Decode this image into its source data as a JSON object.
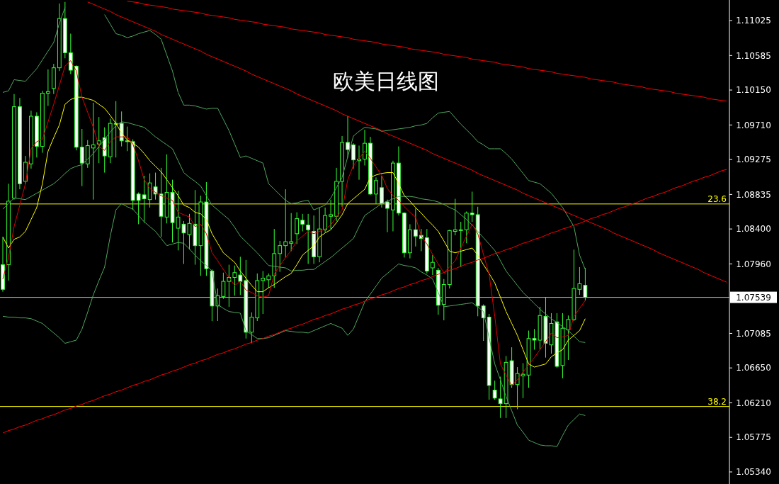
{
  "chart_data": {
    "type": "candlestick",
    "title": "欧美日线图",
    "color": "#33ff33",
    "grid": false,
    "tick_labels": "y",
    "categories": [
      null,
      null,
      null,
      null,
      null,
      null,
      null,
      null,
      null,
      null,
      null,
      null,
      null,
      null,
      null,
      null,
      null,
      null,
      null,
      null,
      null,
      null,
      null,
      null,
      null,
      null,
      null,
      null,
      null,
      null,
      null,
      null,
      null,
      null,
      null,
      null,
      null,
      null,
      null,
      null,
      null,
      null,
      null,
      null,
      null,
      null,
      null,
      null,
      null,
      null,
      null,
      null,
      null,
      null,
      null,
      null,
      null,
      null,
      null,
      null,
      null,
      null,
      null,
      null,
      null,
      null,
      null,
      null,
      null,
      null,
      null,
      null,
      null,
      null,
      null,
      null,
      null,
      null,
      null,
      null,
      null,
      null,
      null,
      null,
      null,
      null,
      null,
      null,
      null,
      null,
      null,
      null,
      null,
      null,
      null,
      null,
      null,
      null,
      null,
      null,
      null,
      null,
      null,
      null,
      null,
      null,
      null,
      null,
      null,
      null,
      null,
      null,
      null,
      null,
      null,
      null,
      null,
      null,
      null,
      null,
      null,
      null,
      null,
      null,
      null,
      null,
      null,
      null,
      null
    ],
    "ylim": [
      1.05188,
      1.11284
    ],
    "yticks": [
      1.11025,
      1.10585,
      {
        "value": 1.1015,
        "label": "1.10150"
      },
      {
        "value": 1.0971,
        "label": "1.09710"
      },
      1.09275,
      1.08835,
      {
        "value": 1.084,
        "label": "1.08400"
      },
      {
        "value": 1.0796,
        "label": "1.07960"
      },
      1.07085,
      {
        "value": 1.0665,
        "label": "1.06650"
      },
      {
        "value": 1.0621,
        "label": "1.06210"
      },
      1.05775,
      {
        "value": 1.0534,
        "label": "1.05340"
      }
    ],
    "annotations": [
      {
        "text": "23.6",
        "y": 1.08715
      },
      {
        "text": "38.2",
        "y": 1.06164
      }
    ],
    "ohlc": [
      [
        1.0795,
        1.083,
        1.0761,
        1.0764
      ],
      [
        1.0795,
        1.0897,
        1.0775,
        1.0875
      ],
      [
        1.0879,
        1.101,
        1.0877,
        1.0994
      ],
      [
        1.0994,
        1.1005,
        1.089,
        1.0897
      ],
      [
        1.09,
        1.0932,
        1.0897,
        1.0924
      ],
      [
        1.0922,
        1.0989,
        1.0916,
        1.0982
      ],
      [
        1.0982,
        1.0987,
        1.093,
        1.0944
      ],
      [
        1.0944,
        1.1014,
        1.0936,
        1.1011
      ],
      [
        1.1011,
        1.1041,
        1.0995,
        1.1013
      ],
      [
        1.1017,
        1.1048,
        1.101,
        1.1043
      ],
      [
        1.1043,
        1.1124,
        1.1039,
        1.1105
      ],
      [
        1.1105,
        1.1126,
        1.1055,
        1.1062
      ],
      [
        1.1062,
        1.1086,
        1.1035,
        1.104
      ],
      [
        1.1045,
        1.1046,
        1.0939,
        1.0943
      ],
      [
        1.0943,
        1.0966,
        1.0894,
        1.0923
      ],
      [
        1.0922,
        1.0952,
        1.0917,
        1.0945
      ],
      [
        1.0942,
        1.0999,
        1.0877,
        1.0946
      ],
      [
        1.0947,
        1.0981,
        1.0923,
        1.0951
      ],
      [
        1.0955,
        1.0968,
        1.0911,
        1.0932
      ],
      [
        1.0931,
        1.0979,
        1.0923,
        1.0973
      ],
      [
        1.0973,
        1.1001,
        1.093,
        1.0972
      ],
      [
        1.0973,
        1.0988,
        1.0944,
        1.0951
      ],
      [
        1.0951,
        1.0969,
        1.0938,
        1.095
      ],
      [
        1.095,
        1.0953,
        1.0864,
        1.0876
      ],
      [
        1.0884,
        1.0886,
        1.0846,
        1.0876
      ],
      [
        1.0883,
        1.0907,
        1.0848,
        1.0878
      ],
      [
        1.0877,
        1.091,
        1.0867,
        1.0898
      ],
      [
        1.0893,
        1.0911,
        1.0877,
        1.0884
      ],
      [
        1.0884,
        1.0917,
        1.083,
        1.0856
      ],
      [
        1.0855,
        1.0934,
        1.0847,
        1.0886
      ],
      [
        1.0886,
        1.0902,
        1.0823,
        1.0848
      ],
      [
        1.0841,
        1.0888,
        1.0813,
        1.0855
      ],
      [
        1.0846,
        1.085,
        1.0796,
        1.0835
      ],
      [
        1.0833,
        1.0859,
        1.0814,
        1.0847
      ],
      [
        1.0846,
        1.0889,
        1.0795,
        1.0819
      ],
      [
        1.0819,
        1.0882,
        1.0781,
        1.0874
      ],
      [
        1.0874,
        1.0899,
        1.0781,
        1.079
      ],
      [
        1.0787,
        1.0789,
        1.0724,
        1.0743
      ],
      [
        1.0743,
        1.0765,
        1.0724,
        1.0756
      ],
      [
        1.0755,
        1.0785,
        1.0752,
        1.0774
      ],
      [
        1.0774,
        1.0795,
        1.0742,
        1.0779
      ],
      [
        1.0779,
        1.0794,
        1.0756,
        1.0785
      ],
      [
        1.0782,
        1.0805,
        1.0757,
        1.0774
      ],
      [
        1.0775,
        1.0801,
        1.0702,
        1.071
      ],
      [
        1.071,
        1.0735,
        1.0696,
        1.0729
      ],
      [
        1.0728,
        1.0784,
        1.0724,
        1.0775
      ],
      [
        1.0775,
        1.0787,
        1.0733,
        1.0778
      ],
      [
        1.0776,
        1.0784,
        1.0766,
        1.0781
      ],
      [
        1.0781,
        1.084,
        1.0766,
        1.0809
      ],
      [
        1.0809,
        1.0825,
        1.0786,
        1.0819
      ],
      [
        1.0819,
        1.089,
        1.0804,
        1.0824
      ],
      [
        1.0822,
        1.086,
        1.0812,
        1.0824
      ],
      [
        1.0834,
        1.0861,
        1.0821,
        1.0853
      ],
      [
        1.0851,
        1.0859,
        1.0837,
        1.0846
      ],
      [
        1.0845,
        1.0859,
        1.0796,
        1.0839
      ],
      [
        1.0837,
        1.0857,
        1.0796,
        1.0805
      ],
      [
        1.0805,
        1.0867,
        1.0798,
        1.084
      ],
      [
        1.0839,
        1.0867,
        1.0836,
        1.0857
      ],
      [
        1.0856,
        1.0877,
        1.084,
        1.0858
      ],
      [
        1.0856,
        1.0917,
        1.085,
        1.09
      ],
      [
        1.09,
        1.0957,
        1.0868,
        1.0949
      ],
      [
        1.0949,
        1.0982,
        1.093,
        1.094
      ],
      [
        1.0946,
        1.0948,
        1.0916,
        1.0927
      ],
      [
        1.0926,
        1.0945,
        1.0902,
        1.0928
      ],
      [
        1.0928,
        1.0965,
        1.092,
        1.0948
      ],
      [
        1.0948,
        1.0956,
        1.0883,
        1.0884
      ],
      [
        1.0884,
        1.0905,
        1.0872,
        1.0901
      ],
      [
        1.0892,
        1.0907,
        1.0867,
        1.0872
      ],
      [
        1.0874,
        1.0877,
        1.0836,
        1.0866
      ],
      [
        1.0864,
        1.0926,
        1.0837,
        1.0923
      ],
      [
        1.0923,
        1.0944,
        1.0857,
        1.086
      ],
      [
        1.086,
        1.0861,
        1.0804,
        1.081
      ],
      [
        1.081,
        1.0846,
        1.0803,
        1.0839
      ],
      [
        1.0839,
        1.0866,
        1.0818,
        1.0831
      ],
      [
        1.0832,
        1.084,
        1.0812,
        1.0828
      ],
      [
        1.0829,
        1.084,
        1.0784,
        1.0787
      ],
      [
        1.0791,
        1.0807,
        1.0782,
        1.0798
      ],
      [
        1.0788,
        1.0791,
        1.0732,
        1.0744
      ],
      [
        1.0745,
        1.0777,
        1.0725,
        1.077
      ],
      [
        1.077,
        1.0839,
        1.0765,
        1.0838
      ],
      [
        1.0837,
        1.0878,
        1.0832,
        1.0839
      ],
      [
        1.0838,
        1.0849,
        1.0792,
        1.0839
      ],
      [
        1.0839,
        1.0862,
        1.0822,
        1.086
      ],
      [
        1.086,
        1.0887,
        1.0849,
        1.0858
      ],
      [
        1.0858,
        1.0868,
        1.073,
        1.0743
      ],
      [
        1.0743,
        1.0745,
        1.0699,
        1.0728
      ],
      [
        1.0729,
        1.0733,
        1.0625,
        1.0643
      ],
      [
        1.0637,
        1.0649,
        1.0625,
        1.0627
      ],
      [
        1.0626,
        1.0654,
        1.0602,
        1.062
      ],
      [
        1.062,
        1.068,
        1.0602,
        1.0672
      ],
      [
        1.0674,
        1.0691,
        1.064,
        1.0644
      ],
      [
        1.0644,
        1.0666,
        1.0613,
        1.0658
      ],
      [
        1.0655,
        1.0671,
        1.0627,
        1.0657
      ],
      [
        1.0656,
        1.0712,
        1.064,
        1.0702
      ],
      [
        1.0702,
        1.0714,
        1.0688,
        1.07
      ],
      [
        1.07,
        1.0742,
        1.0688,
        1.0731
      ],
      [
        1.073,
        1.0754,
        1.0678,
        1.0696
      ],
      [
        1.0694,
        1.0734,
        1.0683,
        1.0721
      ],
      [
        1.0723,
        1.0734,
        1.0665,
        1.0667
      ],
      [
        1.0668,
        1.0734,
        1.0652,
        1.0715
      ],
      [
        1.0713,
        1.0731,
        1.0675,
        1.0726
      ],
      [
        1.0726,
        1.0814,
        1.0724,
        1.0765
      ],
      [
        1.0764,
        1.0792,
        1.0757,
        1.0771
      ],
      [
        1.0769,
        1.0791,
        1.075,
        1.07539
      ],
      null,
      null,
      null,
      null,
      null,
      null,
      null,
      null,
      null,
      null,
      null,
      null,
      null,
      null,
      null,
      null,
      null,
      null,
      null,
      null,
      null,
      null,
      null,
      null,
      null
    ],
    "series": [
      {
        "type": "line",
        "color": "#50a860",
        "values": [
          1.1012,
          1.1014,
          1.1028,
          1.1027,
          1.1026,
          1.1034,
          1.1042,
          1.1053,
          1.1064,
          1.1075,
          1.1099,
          1.1119,
          null,
          null,
          null,
          null,
          null,
          null,
          1.111,
          1.1098,
          1.1086,
          1.1084,
          1.1081,
          1.1083,
          1.1086,
          1.1088,
          1.109,
          1.1085,
          1.1079,
          1.1059,
          1.1039,
          1.1012,
          1.0996,
          1.0996,
          1.0995,
          1.0993,
          1.0991,
          1.0992,
          1.0992,
          1.0978,
          1.0964,
          1.0947,
          1.093,
          1.0932,
          1.0929,
          1.0926,
          1.0923,
          1.0897,
          1.089,
          1.0883,
          1.0876,
          1.0872,
          1.0873,
          1.0875,
          1.0876,
          1.0864,
          1.0867,
          1.087,
          1.0879,
          1.0892,
          1.0905,
          1.0931,
          1.0957,
          1.0963,
          1.0968,
          1.0967,
          1.0966,
          1.0963,
          1.0964,
          1.0965,
          1.0966,
          1.0967,
          1.0968,
          1.097,
          1.0971,
          1.0973,
          1.098,
          1.0986,
          1.0987,
          1.0988,
          1.098,
          1.0972,
          1.0965,
          1.0958,
          1.095,
          1.0946,
          1.0941,
          1.0941,
          1.0941,
          1.0935,
          1.0928,
          1.0919,
          1.091,
          1.0901,
          1.0899,
          1.0897,
          1.0891,
          1.0885,
          1.0876,
          1.0867,
          1.0855,
          1.0843,
          1.0807,
          1.0789,
          null,
          null,
          null,
          null,
          null,
          null,
          null,
          null,
          null,
          null,
          null,
          null,
          null,
          null,
          null,
          null,
          null,
          null,
          null,
          null,
          null,
          null,
          null,
          null,
          null
        ]
      },
      {
        "type": "line",
        "color": "#50a860",
        "values": [
          1.0865,
          1.0872,
          1.0879,
          1.0878,
          1.0877,
          1.0881,
          1.0885,
          1.0889,
          1.0893,
          1.0897,
          1.0903,
          1.091,
          1.0916,
          1.0919,
          1.0921,
          1.0928,
          1.0935,
          1.0944,
          1.0953,
          1.0962,
          1.097,
          1.0975,
          1.0974,
          1.0972,
          1.097,
          1.0968,
          1.0962,
          1.0956,
          1.0951,
          1.0946,
          1.0941,
          1.0926,
          1.0911,
          1.0905,
          1.09,
          1.0894,
          1.0882,
          1.087,
          1.0864,
          1.0858,
          1.0852,
          1.0842,
          1.0831,
          1.0824,
          1.0817,
          1.081,
          1.0802,
          1.0794,
          1.0793,
          1.0792,
          1.0791,
          1.0787,
          1.0788,
          1.0788,
          1.0789,
          1.0789,
          1.0794,
          1.0799,
          1.0804,
          1.081,
          1.0816,
          1.0822,
          1.0828,
          1.0843,
          1.0857,
          1.0862,
          1.0867,
          1.0872,
          1.0875,
          1.0878,
          1.0881,
          1.0881,
          1.0881,
          1.088,
          1.0878,
          1.0877,
          1.0876,
          1.0874,
          1.0871,
          1.0867,
          1.0864,
          1.0858,
          1.0852,
          1.0845,
          1.0837,
          1.0829,
          1.0821,
          1.0813,
          1.08,
          1.0787,
          1.0778,
          1.0769,
          1.076,
          1.0753,
          1.0746,
          1.0739,
          1.0733,
          1.0727,
          1.0722,
          1.0717,
          1.0712,
          1.0705,
          1.0698,
          1.0697,
          null,
          null,
          null,
          null,
          null,
          null,
          null,
          null,
          null,
          null,
          null,
          null,
          null,
          null,
          null,
          null,
          null,
          null,
          null,
          null,
          null,
          null,
          null,
          null,
          null
        ]
      },
      {
        "type": "line",
        "color": "#50a860",
        "values": [
          1.073,
          1.0729,
          1.0729,
          1.0728,
          1.0728,
          1.0727,
          1.0724,
          1.0721,
          1.0715,
          1.0709,
          1.0703,
          1.0696,
          1.0698,
          1.07,
          1.0714,
          1.0735,
          1.0757,
          1.0775,
          1.0792,
          1.0831,
          1.0864,
          1.0872,
          1.0868,
          1.0865,
          1.0857,
          1.0849,
          1.0843,
          1.0837,
          1.0828,
          1.0819,
          1.0821,
          1.0823,
          1.0822,
          1.0815,
          1.0807,
          1.08,
          1.0794,
          1.0787,
          1.0745,
          1.074,
          1.0736,
          1.0735,
          1.0734,
          1.0712,
          1.0707,
          1.0702,
          1.0702,
          1.0703,
          1.0706,
          1.0709,
          1.0712,
          1.0711,
          1.071,
          1.071,
          1.0709,
          1.0712,
          1.0715,
          1.0718,
          1.0721,
          1.0718,
          1.0715,
          1.0706,
          1.0714,
          1.0731,
          1.0748,
          1.0758,
          1.0768,
          1.0778,
          1.0784,
          1.079,
          1.0796,
          1.0794,
          1.0793,
          1.0791,
          1.0786,
          1.0782,
          1.0777,
          1.076,
          1.0742,
          1.0743,
          1.0744,
          1.0745,
          1.0746,
          1.0747,
          1.0742,
          1.0736,
          1.0703,
          1.067,
          1.065,
          1.0629,
          1.0611,
          1.0593,
          1.0584,
          1.0574,
          1.0571,
          1.0568,
          1.0567,
          1.0567,
          1.0566,
          1.058,
          1.0593,
          1.06,
          1.0607,
          1.0605,
          null,
          null,
          null,
          null,
          null,
          null,
          null,
          null,
          null,
          null,
          null,
          null,
          null,
          null,
          null,
          null,
          null,
          null,
          null,
          null,
          null,
          null,
          null,
          null,
          null
        ]
      },
      {
        "type": "line",
        "color": "#ffff00",
        "values": [
          1.083,
          1.0816,
          1.0827,
          1.083,
          1.0837,
          1.0852,
          1.0867,
          1.0897,
          1.0938,
          1.0955,
          1.0971,
          1.0997,
          1.1003,
          1.1006,
          1.1006,
          1.1004,
          1.1002,
          1.0997,
          1.0992,
          1.0983,
          1.0973,
          1.0961,
          1.0952,
          1.0948,
          1.0943,
          1.0935,
          1.0926,
          1.0919,
          1.0912,
          1.0902,
          1.0892,
          1.0882,
          1.087,
          1.0867,
          1.0861,
          1.0859,
          1.0852,
          1.0834,
          1.0822,
          1.081,
          1.0804,
          1.0798,
          1.0787,
          1.0778,
          1.0769,
          1.0761,
          1.0761,
          1.0766,
          1.077,
          1.0775,
          1.078,
          1.0784,
          1.0795,
          1.0807,
          1.0813,
          1.0819,
          1.083,
          1.0835,
          1.0839,
          1.0848,
          1.0858,
          1.0872,
          1.0878,
          1.0884,
          1.089,
          1.0905,
          1.0908,
          1.091,
          1.0911,
          1.0911,
          1.0897,
          1.0882,
          1.0875,
          1.0867,
          1.086,
          1.0852,
          1.0845,
          1.0837,
          1.0825,
          1.0812,
          1.081,
          1.0812,
          1.0814,
          1.0816,
          1.0807,
          1.0795,
          1.0784,
          1.0772,
          1.0754,
          1.0736,
          1.0721,
          1.0706,
          1.0688,
          1.067,
          1.0666,
          1.0668,
          1.067,
          1.0679,
          1.0684,
          1.0688,
          1.07,
          1.0706,
          1.0712,
          1.0727,
          null,
          null,
          null,
          null,
          null,
          null,
          null,
          null,
          null,
          null,
          null,
          null,
          null,
          null,
          null,
          null,
          null,
          null,
          null,
          null,
          null,
          null,
          null,
          null,
          null
        ]
      },
      {
        "type": "line",
        "color": "#e00000",
        "values": [
          1.0777,
          1.0804,
          1.0843,
          1.087,
          1.0897,
          1.0941,
          1.095,
          1.0953,
          1.0975,
          1.0997,
          1.1021,
          1.1045,
          1.1052,
          1.1039,
          1.1006,
          1.0987,
          1.0968,
          1.0944,
          1.0939,
          1.095,
          1.0956,
          1.0956,
          1.0956,
          1.0947,
          1.0926,
          1.0902,
          1.0891,
          1.0886,
          1.0882,
          1.0879,
          1.0876,
          1.0861,
          1.0858,
          1.0855,
          1.0843,
          1.0846,
          1.0834,
          1.081,
          1.08,
          1.0789,
          1.0779,
          1.0769,
          1.0774,
          1.0763,
          1.076,
          1.0756,
          1.0754,
          1.0756,
          1.0783,
          1.0794,
          1.0804,
          1.0813,
          1.0825,
          1.0831,
          1.0837,
          1.0834,
          1.0837,
          1.084,
          1.0845,
          1.0855,
          1.0864,
          1.0902,
          1.092,
          1.0929,
          1.0938,
          1.0929,
          1.0918,
          1.0908,
          1.0891,
          1.0882,
          1.0876,
          1.0868,
          1.0861,
          1.0855,
          1.0831,
          1.0821,
          1.0808,
          1.0796,
          1.0785,
          1.0792,
          1.08,
          1.0816,
          1.0831,
          1.0846,
          1.0834,
          1.0808,
          1.0783,
          1.073,
          1.067,
          1.0656,
          1.0643,
          1.065,
          1.066,
          1.0669,
          1.0678,
          1.0688,
          1.0698,
          1.0709,
          1.0703,
          1.0704,
          1.0706,
          1.073,
          1.074,
          1.075,
          null,
          null,
          null,
          null,
          null,
          null,
          null,
          null,
          null,
          null,
          null,
          null,
          null,
          null,
          null,
          null,
          null,
          null,
          null,
          null,
          null,
          null,
          null,
          null,
          null
        ]
      },
      {
        "type": "line",
        "color": "#ff0000",
        "values": [
          null,
          null,
          null,
          null,
          null,
          null,
          null,
          null,
          null,
          null,
          null,
          null,
          null,
          null,
          null,
          null,
          null,
          null,
          null,
          null,
          null,
          null,
          1.1127,
          1.1126,
          1.1125,
          1.1123,
          1.1122,
          1.1121,
          1.112,
          1.1119,
          1.1117,
          1.1116,
          1.1115,
          1.1114,
          1.1113,
          1.1112,
          1.111,
          1.1109,
          1.1108,
          1.1107,
          1.1106,
          1.1104,
          1.1103,
          1.1102,
          1.1101,
          1.11,
          1.1098,
          1.1097,
          1.1096,
          1.1095,
          1.1094,
          1.1092,
          1.1091,
          1.109,
          1.1089,
          1.1088,
          1.1087,
          1.1085,
          1.1084,
          1.1083,
          1.1082,
          1.1081,
          1.1079,
          1.1078,
          1.1077,
          1.1076,
          1.1075,
          1.1073,
          1.1072,
          1.1071,
          1.107,
          1.1069,
          1.1067,
          1.1066,
          1.1065,
          1.1064,
          1.1063,
          1.1062,
          1.106,
          1.1059,
          1.1058,
          1.1057,
          1.1056,
          1.1054,
          1.1053,
          1.1052,
          1.1051,
          1.105,
          1.1048,
          1.1047,
          1.1046,
          1.1045,
          1.1044,
          1.1042,
          1.1041,
          1.104,
          1.1039,
          1.1038,
          1.1036,
          1.1035,
          1.1034,
          1.1033,
          1.1032,
          1.1031,
          1.1029,
          1.1028,
          1.1027,
          1.1026,
          1.1025,
          1.1023,
          1.1022,
          1.1021,
          1.102,
          1.1019,
          1.1017,
          1.1016,
          1.1015,
          1.1014,
          1.1013,
          1.1011,
          1.101,
          1.1009,
          1.1008,
          1.1007,
          1.1006,
          1.1004,
          1.1003,
          1.1002,
          1.1001
        ]
      },
      {
        "type": "line",
        "color": "#ff0000",
        "values": [
          null,
          null,
          null,
          null,
          null,
          null,
          null,
          null,
          null,
          null,
          null,
          null,
          null,
          null,
          null,
          1.1126,
          1.1123,
          1.112,
          1.1117,
          1.1114,
          1.111,
          1.1107,
          1.1104,
          1.1101,
          1.1098,
          1.1095,
          1.1092,
          1.1089,
          1.1085,
          1.1082,
          1.1079,
          1.1076,
          1.1073,
          1.107,
          1.1067,
          1.1064,
          1.106,
          1.1057,
          1.1054,
          1.1051,
          1.1048,
          1.1045,
          1.1042,
          1.1039,
          1.1035,
          1.1032,
          1.1029,
          1.1026,
          1.1023,
          1.102,
          1.1017,
          1.1014,
          1.101,
          1.1007,
          1.1004,
          1.1001,
          1.0998,
          1.0995,
          1.0992,
          1.0989,
          1.0985,
          1.0982,
          1.0979,
          1.0976,
          1.0973,
          1.097,
          1.0967,
          1.0964,
          1.096,
          1.0957,
          1.0954,
          1.0951,
          1.0948,
          1.0945,
          1.0942,
          1.0939,
          1.0935,
          1.0932,
          1.0929,
          1.0926,
          1.0923,
          1.092,
          1.0917,
          1.0914,
          1.091,
          1.0907,
          1.0904,
          1.0901,
          1.0898,
          1.0895,
          1.0892,
          1.0889,
          1.0885,
          1.0882,
          1.0879,
          1.0876,
          1.0873,
          1.087,
          1.0867,
          1.0864,
          1.086,
          1.0857,
          1.0854,
          1.0851,
          1.0848,
          1.0845,
          1.0842,
          1.0839,
          1.0835,
          1.0832,
          1.0829,
          1.0826,
          1.0823,
          1.082,
          1.0817,
          1.0814,
          1.081,
          1.0807,
          1.0804,
          1.0801,
          1.0798,
          1.0795,
          1.0792,
          1.0789,
          1.0785,
          1.0782,
          1.0779,
          1.0776,
          1.0773
        ]
      },
      {
        "type": "line",
        "color": "#ff0000",
        "values": [
          1.0583,
          1.0586,
          1.0588,
          1.0591,
          1.0593,
          1.0596,
          1.0599,
          1.0601,
          1.0604,
          1.0606,
          1.0609,
          1.0612,
          1.0614,
          1.0617,
          1.0619,
          1.0622,
          1.0624,
          1.0627,
          1.063,
          1.0632,
          1.0635,
          1.0637,
          1.064,
          1.0643,
          1.0645,
          1.0648,
          1.065,
          1.0653,
          1.0656,
          1.0658,
          1.0661,
          1.0663,
          1.0666,
          1.0669,
          1.0671,
          1.0674,
          1.0676,
          1.0679,
          1.0682,
          1.0684,
          1.0687,
          1.0689,
          1.0692,
          1.0695,
          1.0697,
          1.07,
          1.0702,
          1.0705,
          1.0707,
          1.071,
          1.0713,
          1.0715,
          1.0718,
          1.072,
          1.0723,
          1.0726,
          1.0728,
          1.0731,
          1.0733,
          1.0736,
          1.0739,
          1.0741,
          1.0744,
          1.0746,
          1.0749,
          1.0752,
          1.0754,
          1.0757,
          1.0759,
          1.0762,
          1.0765,
          1.0767,
          1.077,
          1.0772,
          1.0775,
          1.0777,
          1.078,
          1.0783,
          1.0785,
          1.0788,
          1.079,
          1.0793,
          1.0796,
          1.0798,
          1.0801,
          1.0803,
          1.0806,
          1.0809,
          1.0811,
          1.0814,
          1.0816,
          1.0819,
          1.0822,
          1.0824,
          1.0827,
          1.0829,
          1.0832,
          1.0835,
          1.0837,
          1.084,
          1.0842,
          1.0845,
          1.0847,
          1.085,
          1.0853,
          1.0855,
          1.0858,
          1.086,
          1.0863,
          1.0866,
          1.0868,
          1.0871,
          1.0873,
          1.0876,
          1.0879,
          1.0881,
          1.0884,
          1.0886,
          1.0889,
          1.0892,
          1.0894,
          1.0897,
          1.09,
          1.0902,
          1.0905,
          1.0907,
          1.091,
          1.0913,
          1.0915
        ]
      }
    ],
    "ref_lines": [
      {
        "axis": "y",
        "value": 1.08715,
        "color": "#ffff00"
      },
      {
        "axis": "y",
        "value": 1.06164,
        "color": "#ffff00"
      },
      {
        "axis": "y",
        "value": 1.07539,
        "label": "1.07539",
        "color": "#b8b8c0"
      }
    ]
  }
}
